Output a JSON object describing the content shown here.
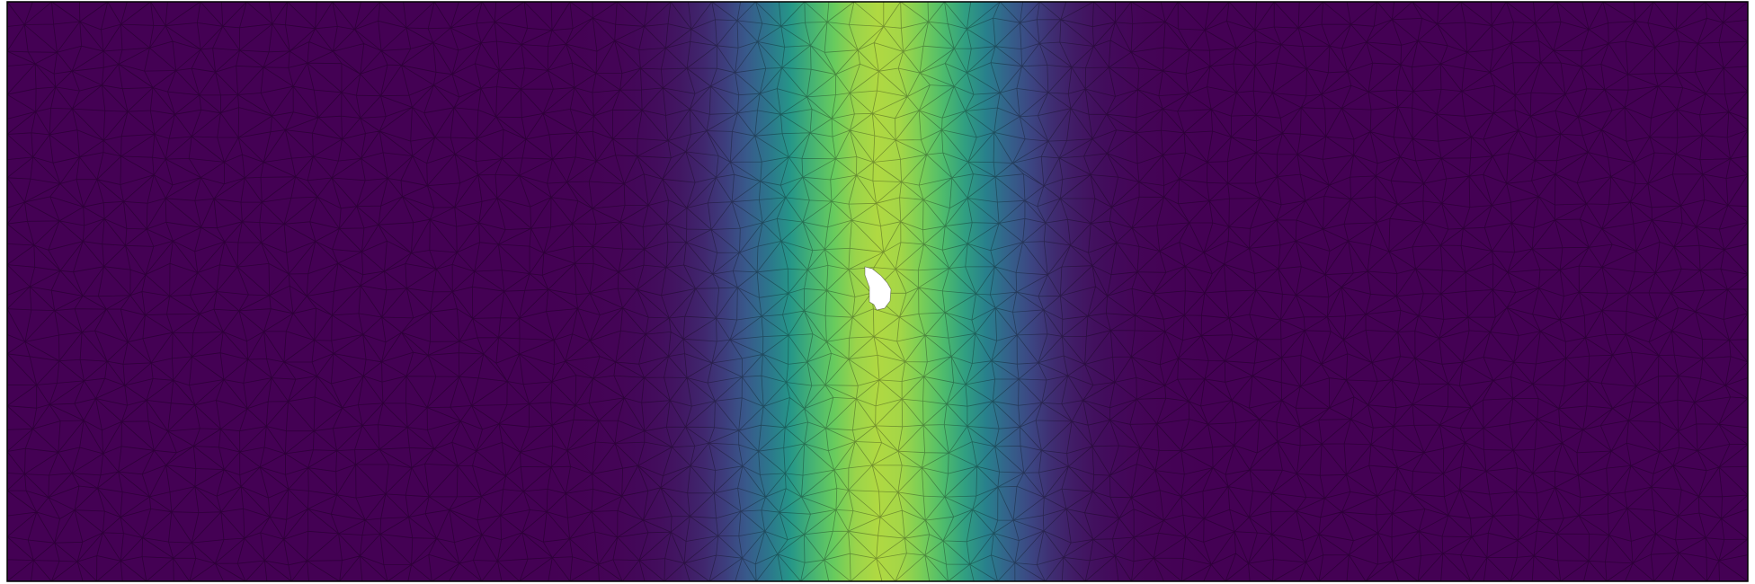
{
  "diagram": {
    "type": "finite-element-mesh-field",
    "colormap": "viridis",
    "colormap_stops": [
      "#440154",
      "#3b528b",
      "#21918c",
      "#5ec962",
      "#fde725"
    ],
    "background_color": "#ffffff",
    "mesh_edge_color": "#000000",
    "border_color": "#000000",
    "hole_fill_color": "#ffffff",
    "field": {
      "shape": "vertical gaussian band",
      "peak_x_fraction": 0.502,
      "peak_level": 0.88,
      "width_fraction": 0.072
    }
  }
}
